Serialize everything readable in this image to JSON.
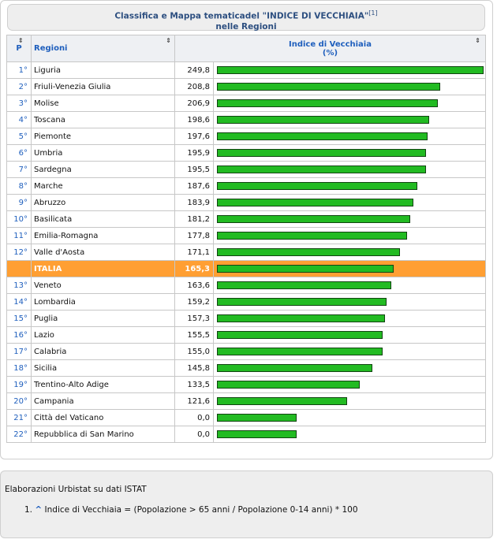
{
  "caption": {
    "line1": "Classifica e Mappa tematicadel \"INDICE DI VECCHIAIA\"",
    "ref": "[1]",
    "line2": "nelle Regioni"
  },
  "table": {
    "col_pos": "P",
    "col_region": "Regioni",
    "col_value_line1": "Indice di Vecchiaia",
    "col_value_line2": "(%)",
    "sort_icon": "⇕"
  },
  "chart_data": {
    "type": "bar",
    "series": [
      {
        "values": [
          249.8,
          208.8,
          206.9,
          198.6,
          197.6,
          195.9,
          195.5,
          187.6,
          183.9,
          181.2,
          177.8,
          171.1,
          165.3,
          163.6,
          159.2,
          157.3,
          155.5,
          155.0,
          145.8,
          133.5,
          121.6,
          0.0,
          0.0
        ]
      }
    ],
    "rows": [
      {
        "pos": "1°",
        "name": "Liguria",
        "value": 249.8,
        "label": "249,8"
      },
      {
        "pos": "2°",
        "name": "Friuli-Venezia Giulia",
        "value": 208.8,
        "label": "208,8"
      },
      {
        "pos": "3°",
        "name": "Molise",
        "value": 206.9,
        "label": "206,9"
      },
      {
        "pos": "4°",
        "name": "Toscana",
        "value": 198.6,
        "label": "198,6"
      },
      {
        "pos": "5°",
        "name": "Piemonte",
        "value": 197.6,
        "label": "197,6"
      },
      {
        "pos": "6°",
        "name": "Umbria",
        "value": 195.9,
        "label": "195,9"
      },
      {
        "pos": "7°",
        "name": "Sardegna",
        "value": 195.5,
        "label": "195,5"
      },
      {
        "pos": "8°",
        "name": "Marche",
        "value": 187.6,
        "label": "187,6"
      },
      {
        "pos": "9°",
        "name": "Abruzzo",
        "value": 183.9,
        "label": "183,9"
      },
      {
        "pos": "10°",
        "name": "Basilicata",
        "value": 181.2,
        "label": "181,2"
      },
      {
        "pos": "11°",
        "name": "Emilia-Romagna",
        "value": 177.8,
        "label": "177,8"
      },
      {
        "pos": "12°",
        "name": "Valle d'Aosta",
        "value": 171.1,
        "label": "171,1"
      },
      {
        "pos": "",
        "name": "ITALIA",
        "value": 165.3,
        "label": "165,3",
        "highlight": true
      },
      {
        "pos": "13°",
        "name": "Veneto",
        "value": 163.6,
        "label": "163,6"
      },
      {
        "pos": "14°",
        "name": "Lombardia",
        "value": 159.2,
        "label": "159,2"
      },
      {
        "pos": "15°",
        "name": "Puglia",
        "value": 157.3,
        "label": "157,3"
      },
      {
        "pos": "16°",
        "name": "Lazio",
        "value": 155.5,
        "label": "155,5"
      },
      {
        "pos": "17°",
        "name": "Calabria",
        "value": 155.0,
        "label": "155,0"
      },
      {
        "pos": "18°",
        "name": "Sicilia",
        "value": 145.8,
        "label": "145,8"
      },
      {
        "pos": "19°",
        "name": "Trentino-Alto Adige",
        "value": 133.5,
        "label": "133,5"
      },
      {
        "pos": "20°",
        "name": "Campania",
        "value": 121.6,
        "label": "121,6"
      },
      {
        "pos": "21°",
        "name": "Città del Vaticano",
        "value": 0.0,
        "label": "0,0"
      },
      {
        "pos": "22°",
        "name": "Repubblica di San Marino",
        "value": 0.0,
        "label": "0,0"
      }
    ],
    "max": 249.8,
    "zero_bar_fraction": 0.3,
    "bar_color": "#22bb22",
    "highlight_color": "#ff9f33"
  },
  "footer": {
    "title": "Elaborazioni Urbistat su dati ISTAT",
    "note_number": "1.",
    "note_link": "^",
    "note_text": "Indice di Vecchiaia = (Popolazione > 65 anni / Popolazione 0-14 anni) * 100"
  }
}
